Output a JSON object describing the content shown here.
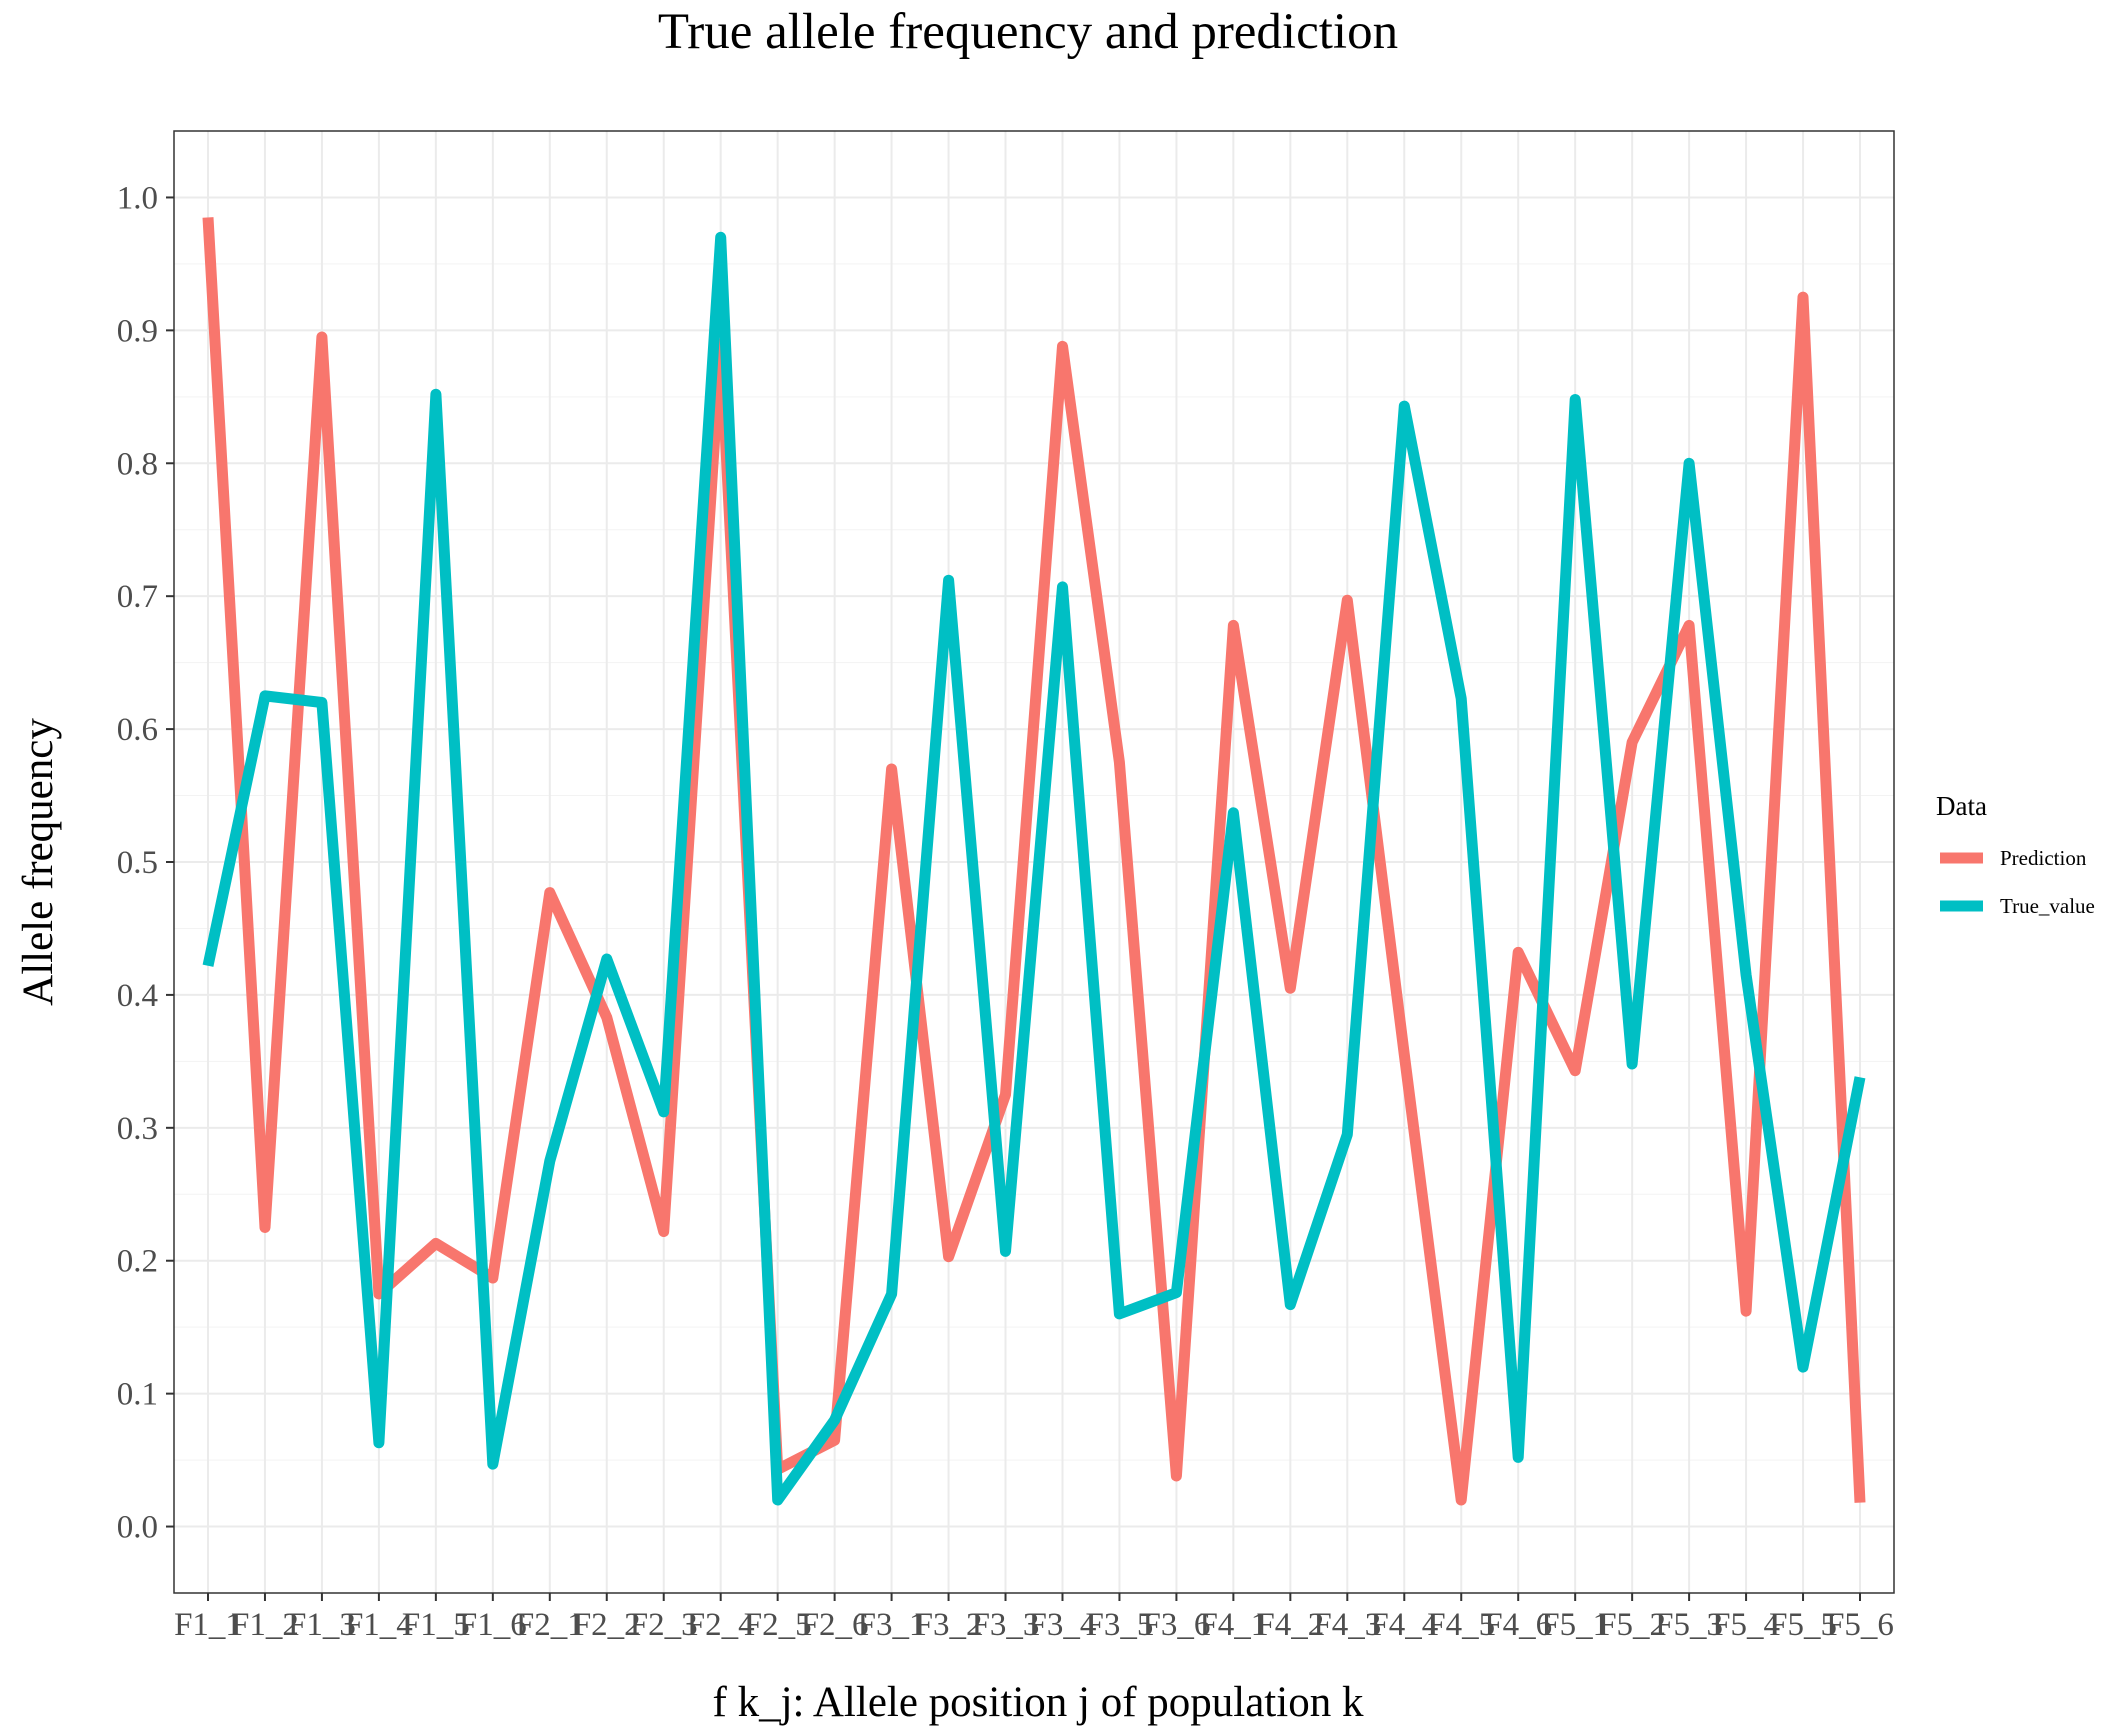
{
  "chart_data": {
    "type": "line",
    "title": "True allele frequency and prediction",
    "xlabel": "f k_j: Allele position j of population k",
    "ylabel": "Allele frequency",
    "ylim": [
      -0.05,
      1.05
    ],
    "y_ticks": [
      "0.0",
      "0.1",
      "0.2",
      "0.3",
      "0.4",
      "0.5",
      "0.6",
      "0.7",
      "0.8",
      "0.9",
      "1.0"
    ],
    "grid": true,
    "legend_title": "Data",
    "legend_position": "right",
    "categories": [
      "F1_1",
      "F1_2",
      "F1_3",
      "F1_4",
      "F1_5",
      "F1_6",
      "F2_1",
      "F2_2",
      "F2_3",
      "F2_4",
      "F2_5",
      "F2_6",
      "F3_1",
      "F3_2",
      "F3_3",
      "F3_4",
      "F3_5",
      "F3_6",
      "F4_1",
      "F4_2",
      "F4_3",
      "F4_4",
      "F4_5",
      "F4_6",
      "F5_1",
      "F5_2",
      "F5_3",
      "F5_4",
      "F5_5",
      "F5_6"
    ],
    "series": [
      {
        "name": "Prediction",
        "color": "#F8766D",
        "values": [
          0.985,
          0.225,
          0.895,
          0.175,
          0.213,
          0.187,
          0.477,
          0.383,
          0.222,
          0.89,
          0.043,
          0.065,
          0.57,
          0.203,
          0.325,
          0.888,
          0.575,
          0.038,
          0.678,
          0.405,
          0.697,
          0.355,
          0.02,
          0.432,
          0.343,
          0.59,
          0.678,
          0.162,
          0.925,
          0.018
        ]
      },
      {
        "name": "True_value",
        "color": "#00BFC4",
        "values": [
          0.422,
          0.625,
          0.62,
          0.063,
          0.852,
          0.047,
          0.275,
          0.427,
          0.312,
          0.97,
          0.02,
          0.08,
          0.175,
          0.712,
          0.207,
          0.707,
          0.16,
          0.176,
          0.537,
          0.167,
          0.295,
          0.843,
          0.623,
          0.052,
          0.848,
          0.348,
          0.8,
          0.415,
          0.12,
          0.338
        ]
      }
    ]
  }
}
